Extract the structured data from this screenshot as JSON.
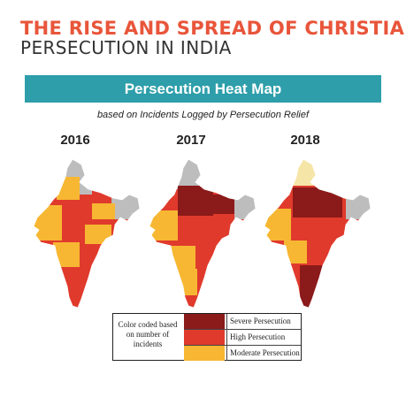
{
  "header": {
    "title_line1": "THE RISE AND SPREAD OF CHRISTIAN",
    "title_line2": "PERSECUTION IN INDIA"
  },
  "banner": {
    "title": "Persecution Heat Map"
  },
  "subtitle": "based on Incidents Logged by Persecution Relief",
  "maps": [
    {
      "year": "2016"
    },
    {
      "year": "2017"
    },
    {
      "year": "2018"
    }
  ],
  "legend": {
    "label": "Color coded based on number of incidents",
    "items": [
      {
        "name": "Severe Persecution",
        "color": "#8b1a1a"
      },
      {
        "name": "High Persecution",
        "color": "#e03a2c"
      },
      {
        "name": "Moderate Persecution",
        "color": "#f7b733"
      }
    ]
  },
  "colors": {
    "title_accent": "#e8553a",
    "banner": "#2d9eaa",
    "severe": "#8b1a1a",
    "high": "#e03a2c",
    "moderate": "#f7b733",
    "light": "#f5e6a8",
    "none": "#bdbdbd"
  }
}
